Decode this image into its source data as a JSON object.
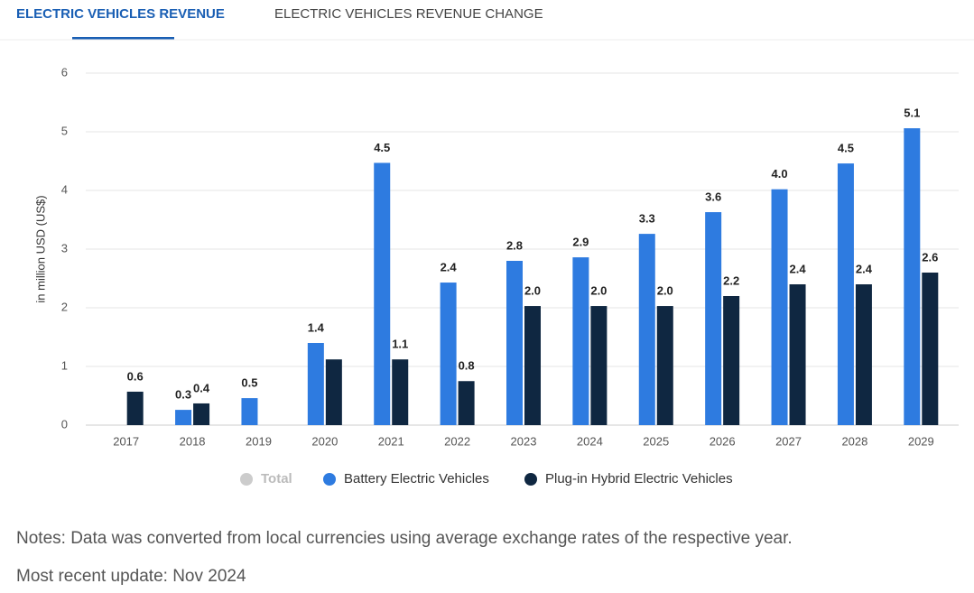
{
  "tabs": [
    "ELECTRIC VEHICLES REVENUE",
    "ELECTRIC VEHICLES REVENUE CHANGE"
  ],
  "chart_data": {
    "type": "bar",
    "y_label": "in million USD (US$)",
    "categories": [
      "2017",
      "2018",
      "2019",
      "2020",
      "2021",
      "2022",
      "2023",
      "2024",
      "2025",
      "2026",
      "2027",
      "2028",
      "2029"
    ],
    "series": [
      {
        "name": "Total",
        "color": "#cccccc",
        "hidden": true,
        "values": [
          null,
          null,
          null,
          null,
          null,
          null,
          null,
          null,
          null,
          null,
          null,
          null,
          null
        ]
      },
      {
        "name": "Battery Electric Vehicles",
        "color": "#2e7be0",
        "values": [
          null,
          0.26,
          0.46,
          1.4,
          4.47,
          2.43,
          2.8,
          2.86,
          3.26,
          3.63,
          4.02,
          4.46,
          5.06
        ],
        "value_labels": [
          null,
          "0.3",
          "0.5",
          "1.4",
          "4.5",
          "2.4",
          "2.8",
          "2.9",
          "3.3",
          "3.6",
          "4.0",
          "4.5",
          "5.1"
        ]
      },
      {
        "name": "Plug-in Hybrid Electric Vehicles",
        "color": "#0f2741",
        "values": [
          0.57,
          0.37,
          null,
          1.12,
          1.12,
          0.75,
          2.03,
          2.03,
          2.03,
          2.2,
          2.4,
          2.4,
          2.6
        ],
        "value_labels": [
          "0.6",
          "0.4",
          null,
          null,
          "1.1",
          "0.8",
          "2.0",
          "2.0",
          "2.0",
          "2.2",
          "2.4",
          "2.4",
          "2.6"
        ]
      }
    ],
    "ylim": [
      0,
      6
    ],
    "yticks": [
      0,
      1,
      2,
      3,
      4,
      5,
      6
    ],
    "grid": true
  },
  "notes": "Notes: Data was converted from local currencies using average exchange rates of the respective year.",
  "update": "Most recent update: Nov 2024"
}
